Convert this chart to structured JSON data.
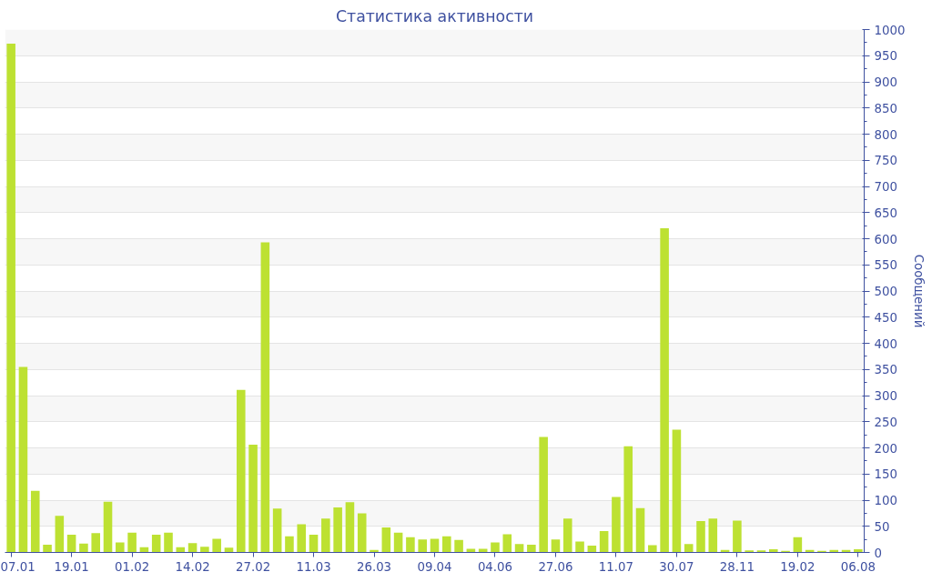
{
  "chart_data": {
    "type": "bar",
    "title": "Статистика активности",
    "ylabel": "Сообщений",
    "categories": [
      "07.01",
      null,
      null,
      null,
      null,
      "19.01",
      null,
      null,
      null,
      null,
      "01.02",
      null,
      null,
      null,
      null,
      "14.02",
      null,
      null,
      null,
      null,
      "27.02",
      null,
      null,
      null,
      null,
      "11.03",
      null,
      null,
      null,
      null,
      "26.03",
      null,
      null,
      null,
      null,
      "09.04",
      null,
      null,
      null,
      null,
      "04.06",
      null,
      null,
      null,
      null,
      "27.06",
      null,
      null,
      null,
      null,
      "11.07",
      null,
      null,
      null,
      null,
      "30.07",
      null,
      null,
      null,
      null,
      "28.11",
      null,
      null,
      null,
      null,
      "19.02",
      null,
      null,
      null,
      null,
      "06.08"
    ],
    "values": [
      973,
      355,
      118,
      15,
      70,
      34,
      17,
      37,
      97,
      19,
      38,
      10,
      34,
      38,
      10,
      18,
      11,
      26,
      9,
      311,
      206,
      593,
      84,
      31,
      54,
      34,
      65,
      86,
      96,
      75,
      5,
      48,
      38,
      29,
      25,
      26,
      31,
      24,
      7,
      7,
      19,
      35,
      16,
      15,
      221,
      25,
      65,
      21,
      13,
      41,
      106,
      203,
      85,
      14,
      620,
      235,
      16,
      60,
      65,
      5,
      61,
      4,
      4,
      6,
      3,
      29,
      5,
      3,
      5,
      5,
      6
    ],
    "color": "#bde132",
    "ylim": [
      0,
      1000
    ],
    "yticks": [
      0,
      50,
      100,
      150,
      200,
      250,
      300,
      350,
      400,
      450,
      500,
      550,
      600,
      650,
      700,
      750,
      800,
      850,
      900,
      950,
      1000
    ],
    "grid": "y"
  }
}
